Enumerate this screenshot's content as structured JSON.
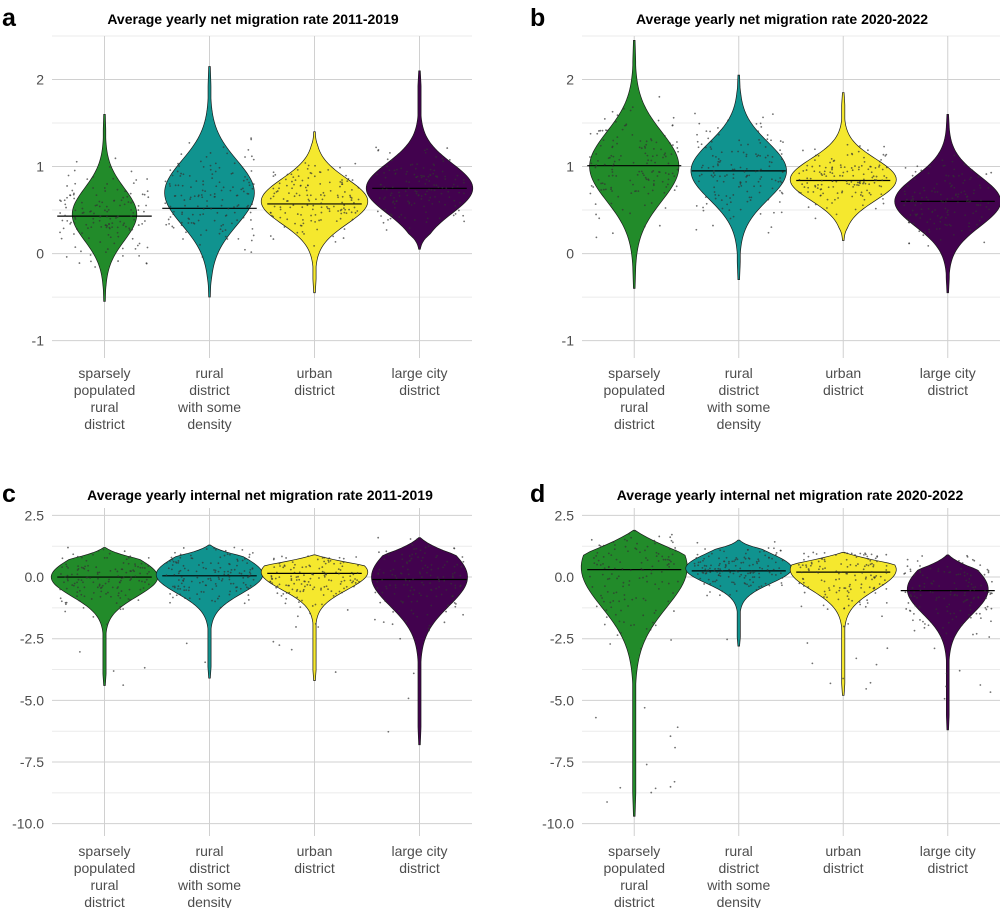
{
  "chart_data": [
    {
      "type": "violin",
      "panel": "a",
      "title": "Average yearly net migration rate 2011-2019",
      "ylim": [
        -1.2,
        2.5
      ],
      "yticks": [
        "-1",
        "0",
        "1",
        "2"
      ],
      "yticks_values": [
        -1,
        0,
        1,
        2
      ],
      "categories": [
        [
          "sparsely",
          "populated",
          "rural",
          "district"
        ],
        [
          "rural",
          "district",
          "with some",
          "density"
        ],
        [
          "urban",
          "district"
        ],
        [
          "large city",
          "district"
        ]
      ],
      "series": [
        {
          "name": "sparsely populated rural district",
          "color": "#228B2A",
          "min": -0.55,
          "max": 1.6,
          "mode": 0.45,
          "median": 0.43,
          "halfwidth": 0.3
        },
        {
          "name": "rural district with some density",
          "color": "#10938F",
          "min": -0.5,
          "max": 2.15,
          "mode": 0.7,
          "median": 0.52,
          "halfwidth": 0.42
        },
        {
          "name": "urban district",
          "color": "#F5E82E",
          "min": -0.45,
          "max": 1.4,
          "mode": 0.6,
          "median": 0.57,
          "halfwidth": 0.5
        },
        {
          "name": "large city district",
          "color": "#42024E",
          "min": 0.05,
          "max": 2.1,
          "mode": 0.75,
          "median": 0.75,
          "halfwidth": 0.5
        }
      ]
    },
    {
      "type": "violin",
      "panel": "b",
      "title": "Average yearly net migration rate 2020-2022",
      "ylim": [
        -1.2,
        2.5
      ],
      "yticks": [
        "-1",
        "0",
        "1",
        "2"
      ],
      "yticks_values": [
        -1,
        0,
        1,
        2
      ],
      "categories": [
        [
          "sparsely",
          "populated",
          "rural",
          "district"
        ],
        [
          "rural",
          "district",
          "with some",
          "density"
        ],
        [
          "urban",
          "district"
        ],
        [
          "large city",
          "district"
        ]
      ],
      "series": [
        {
          "name": "sparsely populated rural district",
          "color": "#228B2A",
          "min": -0.4,
          "max": 2.45,
          "mode": 1.0,
          "median": 1.01,
          "halfwidth": 0.42
        },
        {
          "name": "rural district with some density",
          "color": "#10938F",
          "min": -0.3,
          "max": 2.05,
          "mode": 0.95,
          "median": 0.95,
          "halfwidth": 0.45
        },
        {
          "name": "urban district",
          "color": "#F5E82E",
          "min": 0.15,
          "max": 1.85,
          "mode": 0.85,
          "median": 0.84,
          "halfwidth": 0.5
        },
        {
          "name": "large city district",
          "color": "#42024E",
          "min": -0.45,
          "max": 1.6,
          "mode": 0.6,
          "median": 0.6,
          "halfwidth": 0.5
        }
      ]
    },
    {
      "type": "violin",
      "panel": "c",
      "title": "Average yearly internal net migration rate 2011-2019",
      "ylim": [
        -10.5,
        2.8
      ],
      "yticks": [
        "2.5",
        "0.0",
        "-2.5",
        "-5.0",
        "-7.5",
        "-10.0"
      ],
      "yticks_values": [
        2.5,
        0,
        -2.5,
        -5,
        -7.5,
        -10
      ],
      "categories": [
        [
          "sparsely",
          "populated",
          "rural",
          "district"
        ],
        [
          "rural",
          "district",
          "with some",
          "density"
        ],
        [
          "urban",
          "district"
        ],
        [
          "large city",
          "district"
        ]
      ],
      "series": [
        {
          "name": "sparsely populated rural district",
          "color": "#228B2A",
          "min": -4.4,
          "max": 1.2,
          "mode": 0.0,
          "median": 0.0,
          "halfwidth": 0.5
        },
        {
          "name": "rural district with some density",
          "color": "#10938F",
          "min": -4.1,
          "max": 1.3,
          "mode": 0.1,
          "median": 0.05,
          "halfwidth": 0.5
        },
        {
          "name": "urban district",
          "color": "#F5E82E",
          "min": -4.2,
          "max": 0.9,
          "mode": 0.2,
          "median": 0.15,
          "halfwidth": 0.5
        },
        {
          "name": "large city district",
          "color": "#42024E",
          "min": -6.8,
          "max": 1.6,
          "mode": 0.0,
          "median": -0.1,
          "halfwidth": 0.45
        }
      ]
    },
    {
      "type": "violin",
      "panel": "d",
      "title": "Average yearly internal net migration rate 2020-2022",
      "ylim": [
        -10.5,
        2.8
      ],
      "yticks": [
        "2.5",
        "0.0",
        "-2.5",
        "-5.0",
        "-7.5",
        "-10.0"
      ],
      "yticks_values": [
        2.5,
        0,
        -2.5,
        -5,
        -7.5,
        -10
      ],
      "categories": [
        [
          "sparsely",
          "populated",
          "rural",
          "district"
        ],
        [
          "rural",
          "district",
          "with some",
          "density"
        ],
        [
          "urban",
          "district"
        ],
        [
          "large city",
          "district"
        ]
      ],
      "series": [
        {
          "name": "sparsely populated rural district",
          "color": "#228B2A",
          "min": -9.7,
          "max": 1.9,
          "mode": 0.4,
          "median": 0.3,
          "halfwidth": 0.5
        },
        {
          "name": "rural district with some density",
          "color": "#10938F",
          "min": -2.8,
          "max": 1.5,
          "mode": 0.35,
          "median": 0.25,
          "halfwidth": 0.5
        },
        {
          "name": "urban district",
          "color": "#F5E82E",
          "min": -4.8,
          "max": 1.0,
          "mode": 0.3,
          "median": 0.2,
          "halfwidth": 0.5
        },
        {
          "name": "large city district",
          "color": "#42024E",
          "min": -6.2,
          "max": 0.9,
          "mode": -0.5,
          "median": -0.55,
          "halfwidth": 0.38
        }
      ]
    }
  ]
}
